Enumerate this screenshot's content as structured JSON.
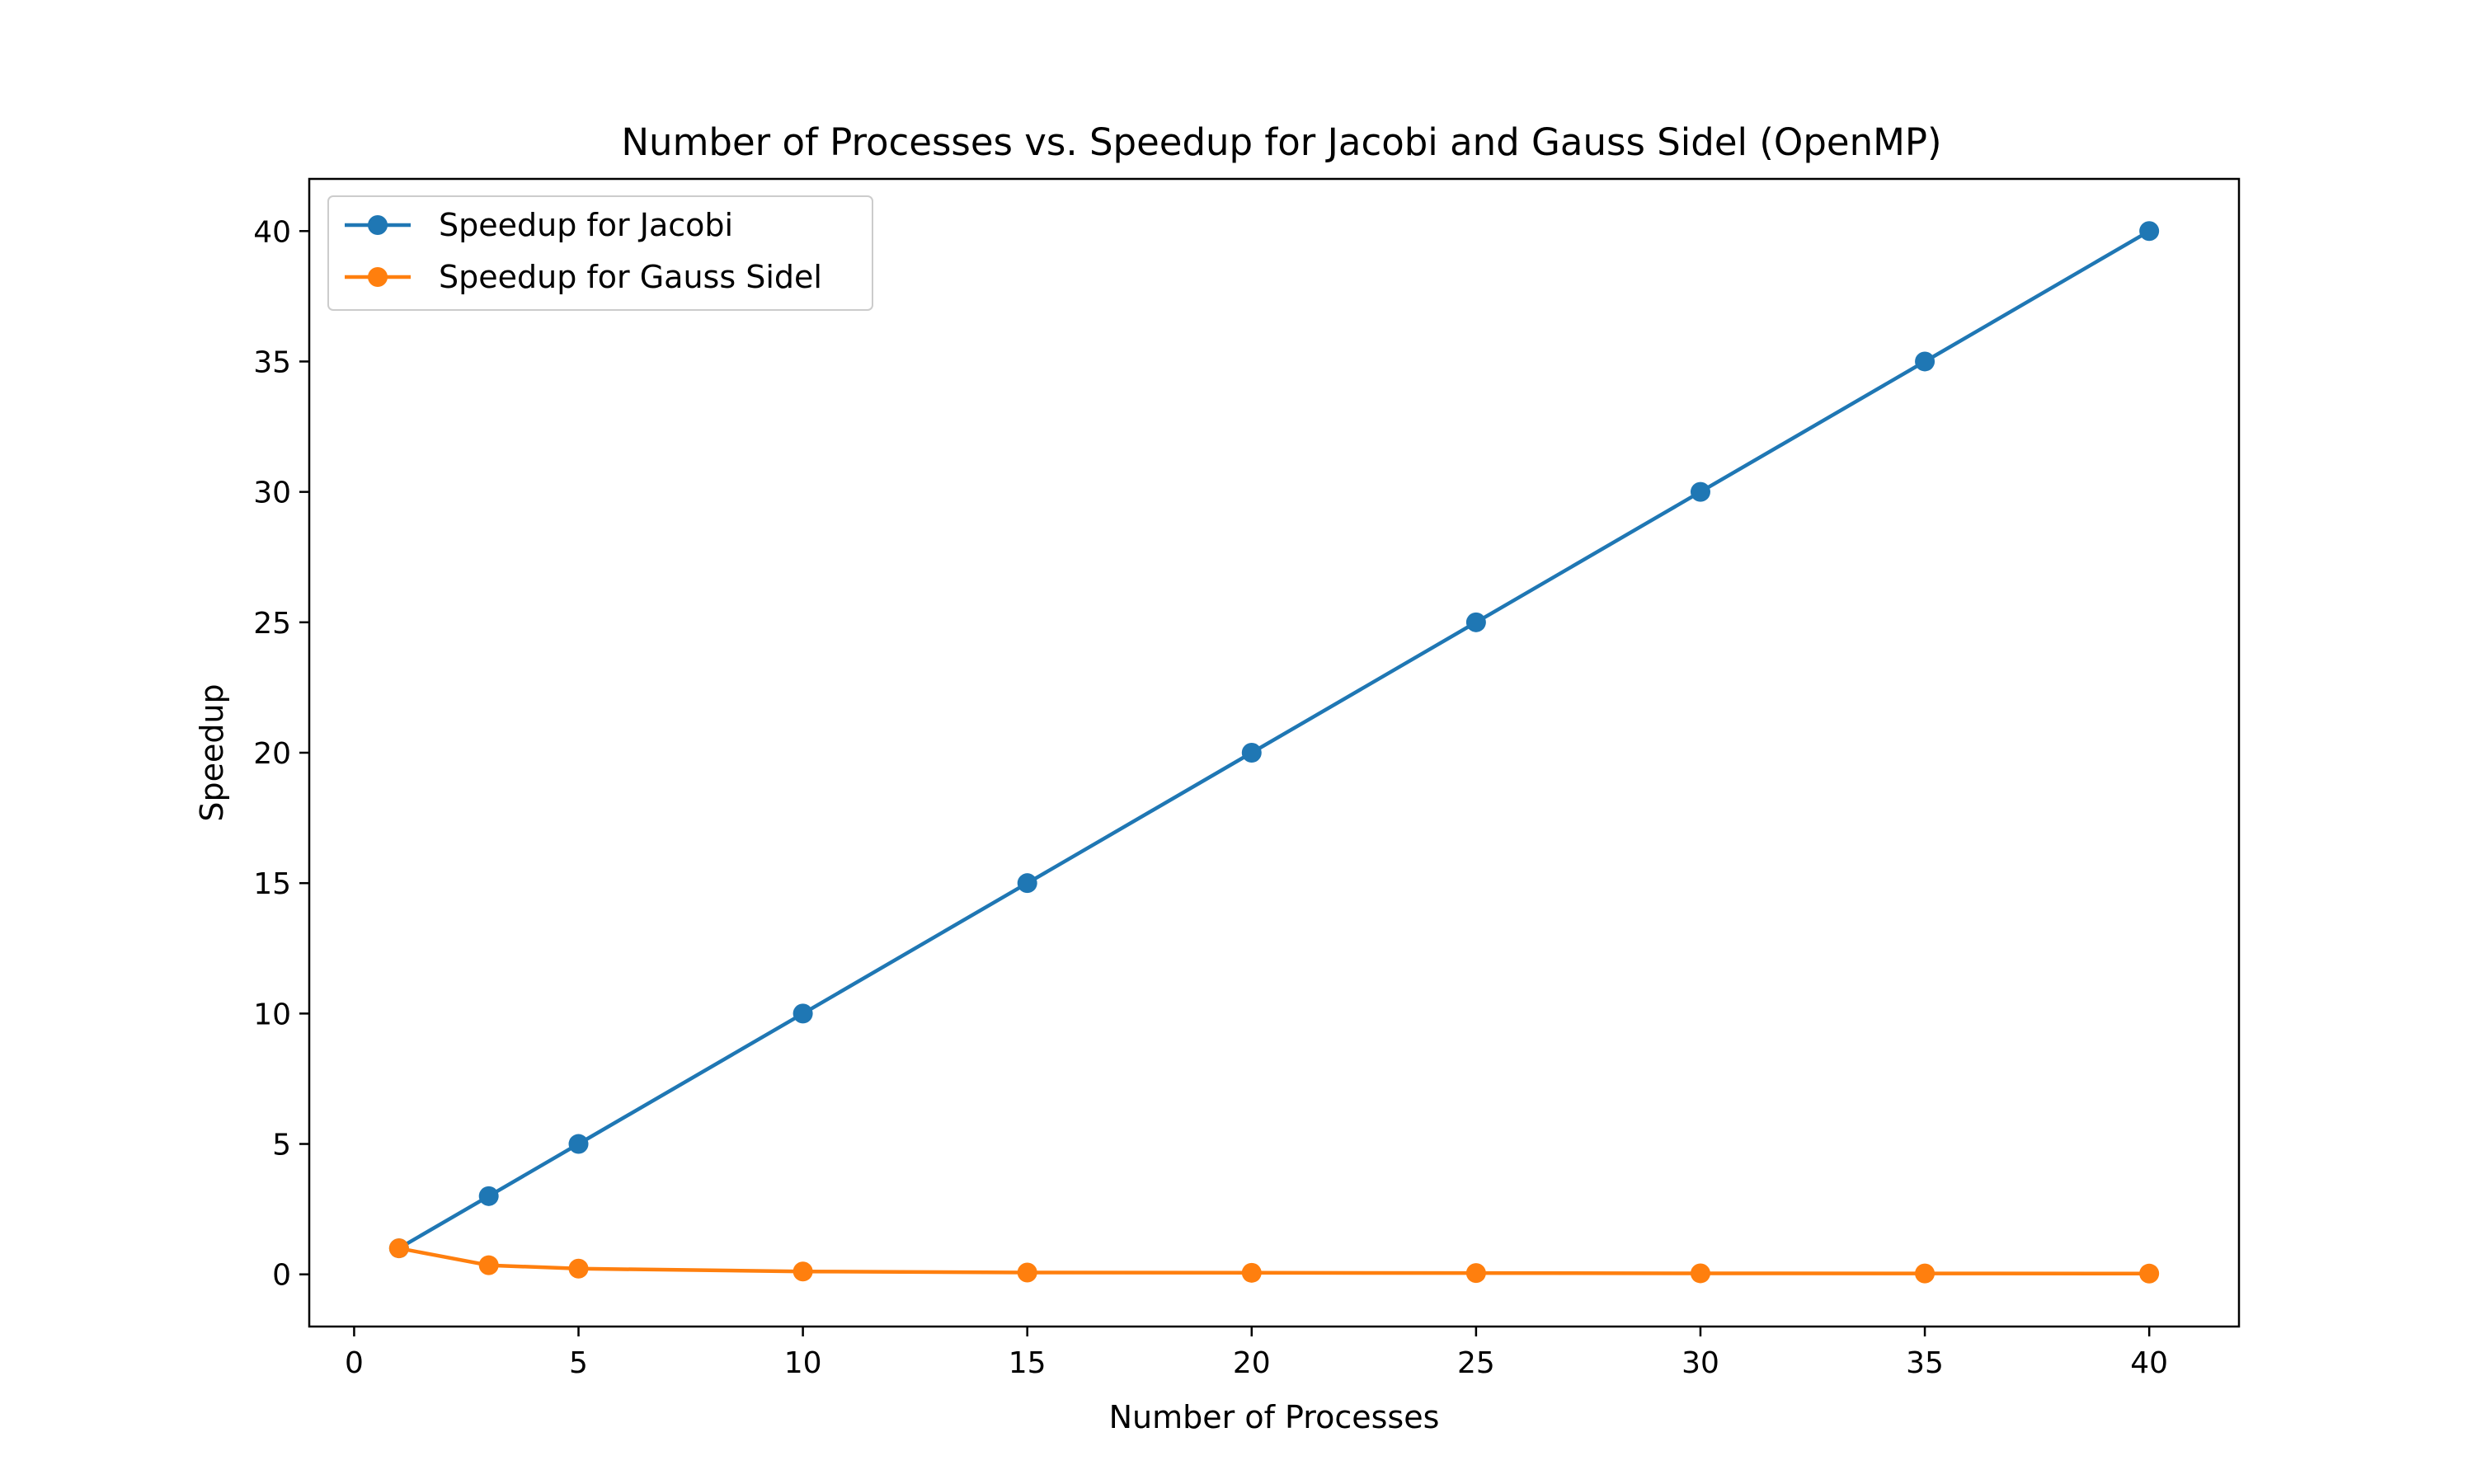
{
  "chart_data": {
    "type": "line",
    "title": "Number of Processes vs. Speedup for Jacobi and Gauss Sidel (OpenMP)",
    "xlabel": "Number of Processes",
    "ylabel": "Speedup",
    "xlim": [
      -1,
      42
    ],
    "ylim": [
      -2,
      42
    ],
    "xticks": [
      0,
      5,
      10,
      15,
      20,
      25,
      30,
      35,
      40
    ],
    "yticks": [
      0,
      5,
      10,
      15,
      20,
      25,
      30,
      35,
      40
    ],
    "grid": false,
    "legend_position": "top-left",
    "x": [
      1,
      3,
      5,
      10,
      15,
      20,
      25,
      30,
      35,
      40
    ],
    "series": [
      {
        "name": "Speedup for Jacobi",
        "color": "#1f77b4",
        "values": [
          1,
          3,
          5,
          10,
          15,
          20,
          25,
          30,
          35,
          40
        ]
      },
      {
        "name": "Speedup for Gauss Sidel",
        "color": "#ff7f0e",
        "values": [
          1.0,
          0.35,
          0.22,
          0.11,
          0.07,
          0.06,
          0.05,
          0.04,
          0.035,
          0.03
        ]
      }
    ]
  }
}
